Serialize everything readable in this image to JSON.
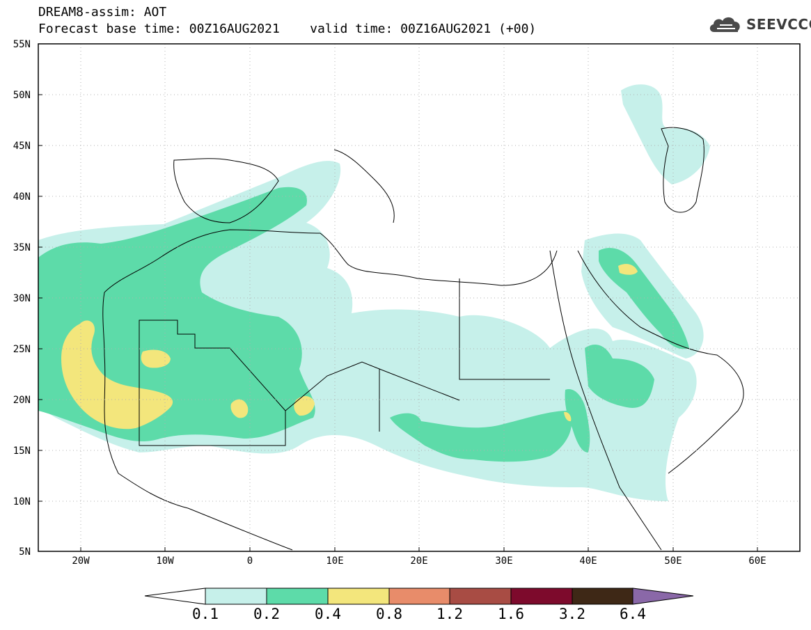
{
  "header": {
    "title_line1": "DREAM8-assim: AOT",
    "title_line2": "Forecast base time: 00Z16AUG2021    valid time: 00Z16AUG2021 (+00)"
  },
  "logo": {
    "text": "SEEVCCC",
    "icon": "cloud-icon"
  },
  "map": {
    "variable": "AOT",
    "lat_labels": [
      "55N",
      "50N",
      "45N",
      "40N",
      "35N",
      "30N",
      "25N",
      "20N",
      "15N",
      "10N",
      "5N"
    ],
    "lon_labels": [
      "20W",
      "10W",
      "0",
      "10E",
      "20E",
      "30E",
      "40E",
      "50E",
      "60E"
    ],
    "lat_range": [
      5,
      55
    ],
    "lon_range": [
      -25,
      65
    ],
    "grid": "dotted"
  },
  "colorbar": {
    "levels": [
      "0.1",
      "0.2",
      "0.4",
      "0.8",
      "1.2",
      "1.6",
      "3.2",
      "6.4"
    ],
    "colors": [
      "#ffffff",
      "#c6f0ea",
      "#5ddba9",
      "#f3e67c",
      "#e88c6a",
      "#a84c44",
      "#7d0a2c",
      "#3e2816",
      "#8a68a8"
    ]
  }
}
